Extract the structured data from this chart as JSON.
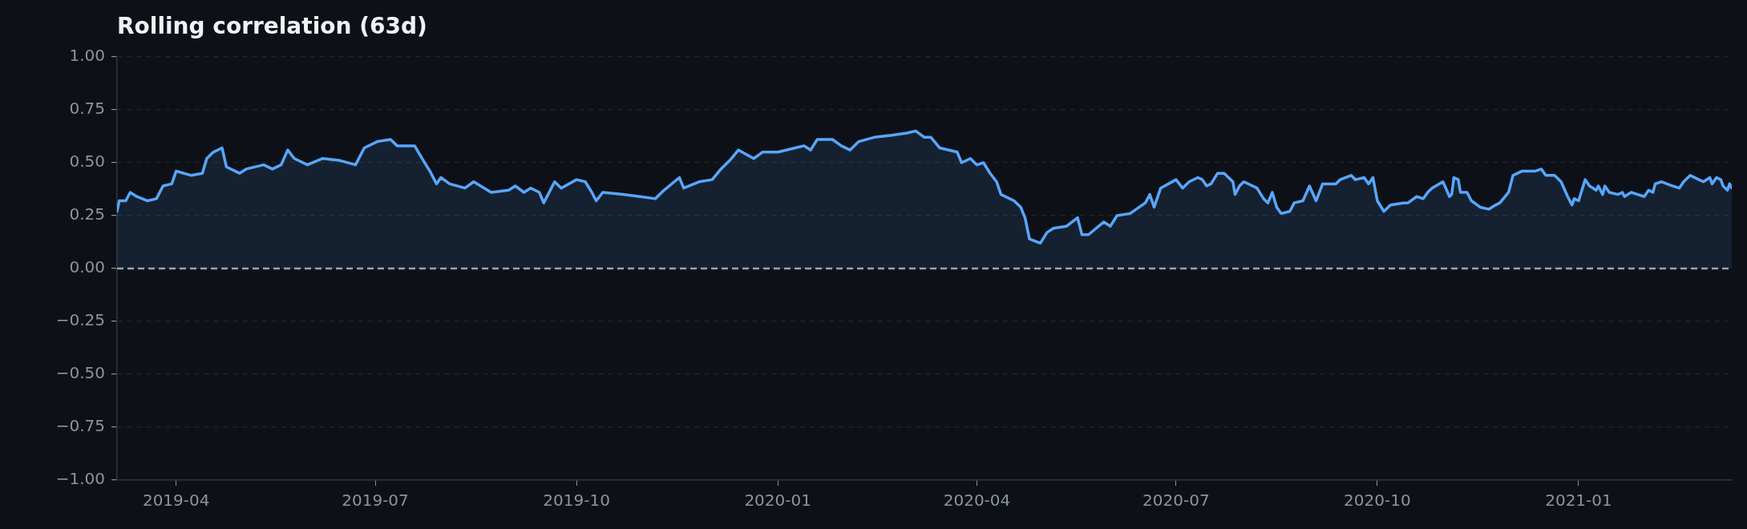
{
  "chart_data": {
    "type": "area",
    "title": "Rolling correlation (63d)",
    "series": [
      {
        "color": "#58a6ff",
        "x": [
          "2019-03-05",
          "2019-03-06",
          "2019-03-09",
          "2019-03-11",
          "2019-03-14",
          "2019-03-19",
          "2019-03-23",
          "2019-03-26",
          "2019-03-30",
          "2019-04-01",
          "2019-04-08",
          "2019-04-13",
          "2019-04-15",
          "2019-04-18",
          "2019-04-22",
          "2019-04-24",
          "2019-04-30",
          "2019-05-03",
          "2019-05-11",
          "2019-05-15",
          "2019-05-19",
          "2019-05-22",
          "2019-05-25",
          "2019-05-31",
          "2019-06-07",
          "2019-06-15",
          "2019-06-22",
          "2019-06-26",
          "2019-07-02",
          "2019-07-08",
          "2019-07-11",
          "2019-07-19",
          "2019-07-23",
          "2019-07-26",
          "2019-07-29",
          "2019-07-31",
          "2019-08-04",
          "2019-08-11",
          "2019-08-15",
          "2019-08-23",
          "2019-08-31",
          "2019-09-03",
          "2019-09-07",
          "2019-09-10",
          "2019-09-14",
          "2019-09-16",
          "2019-09-18",
          "2019-09-21",
          "2019-09-24",
          "2019-10-01",
          "2019-10-05",
          "2019-10-08",
          "2019-10-10",
          "2019-10-13",
          "2019-10-22",
          "2019-10-30",
          "2019-11-06",
          "2019-11-10",
          "2019-11-17",
          "2019-11-19",
          "2019-11-26",
          "2019-12-02",
          "2019-12-06",
          "2019-12-10",
          "2019-12-14",
          "2019-12-21",
          "2019-12-25",
          "2020-01-01",
          "2020-01-09",
          "2020-01-13",
          "2020-01-16",
          "2020-01-19",
          "2020-01-26",
          "2020-01-30",
          "2020-02-03",
          "2020-02-07",
          "2020-02-14",
          "2020-02-22",
          "2020-02-29",
          "2020-03-04",
          "2020-03-08",
          "2020-03-11",
          "2020-03-15",
          "2020-03-23",
          "2020-03-25",
          "2020-03-29",
          "2020-04-01",
          "2020-04-04",
          "2020-04-07",
          "2020-04-10",
          "2020-04-12",
          "2020-04-18",
          "2020-04-21",
          "2020-04-23",
          "2020-04-25",
          "2020-04-30",
          "2020-05-03",
          "2020-05-06",
          "2020-05-12",
          "2020-05-17",
          "2020-05-19",
          "2020-05-22",
          "2020-05-29",
          "2020-06-01",
          "2020-06-04",
          "2020-06-10",
          "2020-06-17",
          "2020-06-19",
          "2020-06-21",
          "2020-06-24",
          "2020-07-01",
          "2020-07-04",
          "2020-07-07",
          "2020-07-11",
          "2020-07-13",
          "2020-07-15",
          "2020-07-17",
          "2020-07-20",
          "2020-07-23",
          "2020-07-27",
          "2020-07-28",
          "2020-07-30",
          "2020-08-01",
          "2020-08-07",
          "2020-08-10",
          "2020-08-12",
          "2020-08-14",
          "2020-08-16",
          "2020-08-18",
          "2020-08-22",
          "2020-08-24",
          "2020-08-28",
          "2020-08-31",
          "2020-09-03",
          "2020-09-06",
          "2020-09-12",
          "2020-09-14",
          "2020-09-19",
          "2020-09-21",
          "2020-09-25",
          "2020-09-27",
          "2020-09-29",
          "2020-10-01",
          "2020-10-04",
          "2020-10-07",
          "2020-10-13",
          "2020-10-15",
          "2020-10-19",
          "2020-10-22",
          "2020-10-24",
          "2020-10-26",
          "2020-10-31",
          "2020-11-03",
          "2020-11-04",
          "2020-11-05",
          "2020-11-07",
          "2020-11-08",
          "2020-11-11",
          "2020-11-13",
          "2020-11-17",
          "2020-11-21",
          "2020-11-24",
          "2020-11-26",
          "2020-11-30",
          "2020-12-02",
          "2020-12-06",
          "2020-12-12",
          "2020-12-15",
          "2020-12-17",
          "2020-12-21",
          "2020-12-24",
          "2020-12-27",
          "2020-12-29",
          "2020-12-30",
          "2021-01-01",
          "2021-01-04",
          "2021-01-06",
          "2021-01-09",
          "2021-01-10",
          "2021-01-12",
          "2021-01-13",
          "2021-01-15",
          "2021-01-19",
          "2021-01-21",
          "2021-01-22",
          "2021-01-25",
          "2021-01-28",
          "2021-01-31",
          "2021-02-02",
          "2021-02-04",
          "2021-02-05",
          "2021-02-08",
          "2021-02-13",
          "2021-02-16",
          "2021-02-18",
          "2021-02-21",
          "2021-02-25",
          "2021-02-27",
          "2021-03-02",
          "2021-03-03",
          "2021-03-05",
          "2021-03-07",
          "2021-03-08",
          "2021-03-10",
          "2021-03-11",
          "2021-03-12"
        ],
        "values": [
          0.27,
          0.32,
          0.32,
          0.36,
          0.34,
          0.32,
          0.33,
          0.39,
          0.4,
          0.46,
          0.44,
          0.45,
          0.52,
          0.55,
          0.57,
          0.48,
          0.45,
          0.47,
          0.49,
          0.47,
          0.49,
          0.56,
          0.52,
          0.49,
          0.52,
          0.51,
          0.49,
          0.57,
          0.6,
          0.61,
          0.58,
          0.58,
          0.51,
          0.46,
          0.4,
          0.43,
          0.4,
          0.38,
          0.41,
          0.36,
          0.37,
          0.39,
          0.36,
          0.38,
          0.36,
          0.31,
          0.35,
          0.41,
          0.38,
          0.42,
          0.41,
          0.36,
          0.32,
          0.36,
          0.35,
          0.34,
          0.33,
          0.37,
          0.43,
          0.38,
          0.41,
          0.42,
          0.47,
          0.51,
          0.56,
          0.52,
          0.55,
          0.55,
          0.57,
          0.58,
          0.56,
          0.61,
          0.61,
          0.58,
          0.56,
          0.6,
          0.62,
          0.63,
          0.64,
          0.65,
          0.62,
          0.62,
          0.57,
          0.55,
          0.5,
          0.52,
          0.49,
          0.5,
          0.45,
          0.41,
          0.35,
          0.32,
          0.29,
          0.24,
          0.14,
          0.12,
          0.17,
          0.19,
          0.2,
          0.24,
          0.16,
          0.16,
          0.22,
          0.2,
          0.25,
          0.26,
          0.31,
          0.35,
          0.29,
          0.38,
          0.42,
          0.38,
          0.41,
          0.43,
          0.42,
          0.39,
          0.4,
          0.45,
          0.45,
          0.41,
          0.35,
          0.39,
          0.41,
          0.38,
          0.33,
          0.31,
          0.36,
          0.29,
          0.26,
          0.27,
          0.31,
          0.32,
          0.39,
          0.32,
          0.4,
          0.4,
          0.42,
          0.44,
          0.42,
          0.43,
          0.4,
          0.43,
          0.32,
          0.27,
          0.3,
          0.31,
          0.31,
          0.34,
          0.33,
          0.36,
          0.38,
          0.41,
          0.34,
          0.35,
          0.43,
          0.42,
          0.36,
          0.36,
          0.32,
          0.29,
          0.28,
          0.3,
          0.31,
          0.36,
          0.44,
          0.46,
          0.46,
          0.47,
          0.44,
          0.44,
          0.41,
          0.34,
          0.3,
          0.33,
          0.32,
          0.42,
          0.39,
          0.37,
          0.39,
          0.35,
          0.39,
          0.36,
          0.35,
          0.36,
          0.34,
          0.36,
          0.35,
          0.34,
          0.37,
          0.36,
          0.4,
          0.41,
          0.39,
          0.38,
          0.41,
          0.44,
          0.42,
          0.41,
          0.43,
          0.4,
          0.43,
          0.42,
          0.39,
          0.37,
          0.4,
          0.38
        ]
      }
    ],
    "xlim": [
      "2019-03-05",
      "2021-03-12"
    ],
    "xticks": [
      {
        "value": "2019-04-01",
        "label": "2019-04"
      },
      {
        "value": "2019-07-01",
        "label": "2019-07"
      },
      {
        "value": "2019-10-01",
        "label": "2019-10"
      },
      {
        "value": "2020-01-01",
        "label": "2020-01"
      },
      {
        "value": "2020-04-01",
        "label": "2020-04"
      },
      {
        "value": "2020-07-01",
        "label": "2020-07"
      },
      {
        "value": "2020-10-01",
        "label": "2020-10"
      },
      {
        "value": "2021-01-01",
        "label": "2021-01"
      }
    ],
    "ylim": [
      -1,
      1
    ],
    "yticks": [
      {
        "value": -1,
        "label": "−1.00"
      },
      {
        "value": -0.75,
        "label": "−0.75"
      },
      {
        "value": -0.5,
        "label": "−0.50"
      },
      {
        "value": -0.25,
        "label": "−0.25"
      },
      {
        "value": 0,
        "label": "0.00"
      },
      {
        "value": 0.25,
        "label": "0.25"
      },
      {
        "value": 0.5,
        "label": "0.50"
      },
      {
        "value": 0.75,
        "label": "0.75"
      },
      {
        "value": 1,
        "label": "1.00"
      }
    ],
    "ref_lines": [
      {
        "axis": "y",
        "value": 0,
        "color": "#9aa4b0",
        "line_style": "dashed"
      }
    ],
    "grid": "y",
    "legend": false,
    "marker": "none",
    "line_style": "solid"
  }
}
